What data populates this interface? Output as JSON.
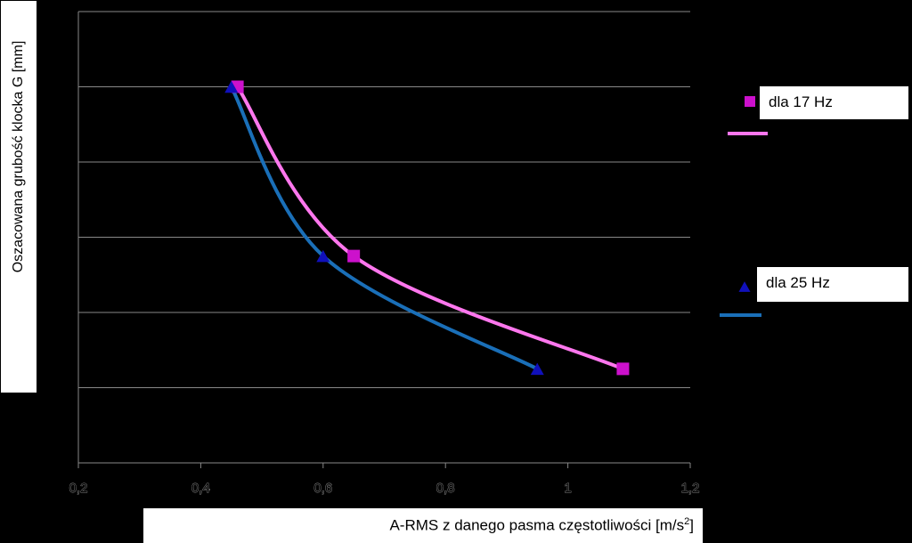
{
  "chart_data": {
    "type": "scatter",
    "title": "",
    "xlabel": "A-RMS z danego pasma częstotliwości [m/s",
    "xlabel_sup": "2",
    "xlabel_end": "]",
    "ylabel": "Oszacowana grubość klocka G [mm]",
    "xlim": [
      0.2,
      1.2
    ],
    "ylim": [
      0,
      6
    ],
    "xticks": [
      "0,2",
      "0,4",
      "0,6",
      "0,8",
      "1",
      "1,2"
    ],
    "xtick_values": [
      0.2,
      0.4,
      0.6,
      0.8,
      1.0,
      1.2
    ],
    "grid": "horizontal",
    "legend_placement": "right",
    "series": [
      {
        "name": "dla 17 Hz",
        "marker": "square",
        "color": "#cc11cc",
        "line_color": "#ff77ee",
        "x": [
          0.46,
          0.65,
          1.09
        ],
        "y": [
          5.0,
          2.75,
          1.25
        ]
      },
      {
        "name": "dla 25 Hz",
        "marker": "triangle",
        "color": "#1010bb",
        "line_color": "#1a6fb8",
        "x": [
          0.45,
          0.6,
          0.95
        ],
        "y": [
          5.0,
          2.75,
          1.25
        ]
      }
    ]
  }
}
